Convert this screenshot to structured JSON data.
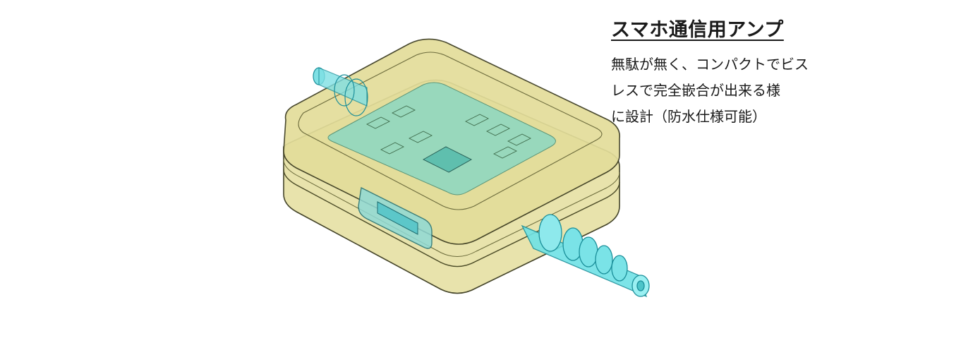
{
  "caption": {
    "title": "スマホ通信用アンプ",
    "lines": [
      "無駄が無く、コンパクトでビス",
      "レスで完全嵌合が出来る様",
      "に設計（防水仕様可能）"
    ]
  },
  "colors": {
    "housing_fill": "#e3dd9a",
    "housing_stroke": "#3a3a1e",
    "board_fill": "#7fd7c7",
    "cable_fill": "#6fe2e6",
    "cable_stroke": "#1b8f9a"
  }
}
